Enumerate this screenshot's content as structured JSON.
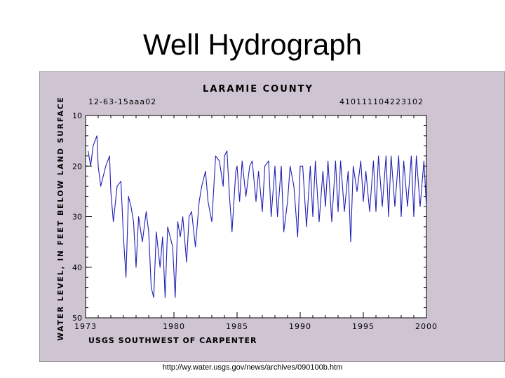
{
  "slide": {
    "title": "Well Hydrograph",
    "source_url": "http://wy.water.usgs.gov/news/archives/090100b.htm"
  },
  "colors": {
    "frame_background": "#cfc4d1",
    "plot_background": "#ffffff",
    "series_line": "#1f1fb4",
    "text": "#000000"
  },
  "chart_data": {
    "type": "line",
    "title": "LARAMIE COUNTY",
    "subtitle_left": "12-63-15aaa02",
    "subtitle_right": "410111104223102",
    "ylabel": "WATER LEVEL, IN FEET BELOW LAND SURFACE",
    "xlabel": "USGS SOUTHWEST OF CARPENTER",
    "xlim": [
      1973,
      2000
    ],
    "ylim": [
      50,
      10
    ],
    "y_inverted": true,
    "grid": false,
    "x_ticks": [
      1973,
      1980,
      1985,
      1990,
      1995,
      2000
    ],
    "y_ticks": [
      10,
      20,
      30,
      40,
      50
    ],
    "series": [
      {
        "x": [
          1973.2,
          1973.4,
          1973.6,
          1973.9,
          1974.0,
          1974.2,
          1974.4,
          1974.6,
          1974.9,
          1975.0,
          1975.2,
          1975.5,
          1975.8,
          1976.0,
          1976.2,
          1976.4,
          1976.6,
          1976.8,
          1977.0,
          1977.2,
          1977.5,
          1977.8,
          1978.0,
          1978.2,
          1978.4,
          1978.6,
          1978.9,
          1979.1,
          1979.3,
          1979.5,
          1979.7,
          1979.9,
          1980.1,
          1980.3,
          1980.5,
          1980.7,
          1981.0,
          1981.2,
          1981.4,
          1981.7,
          1982.0,
          1982.2,
          1982.5,
          1982.7,
          1983.0,
          1983.3,
          1983.6,
          1983.9,
          1984.0,
          1984.2,
          1984.4,
          1984.6,
          1984.9,
          1985.0,
          1985.2,
          1985.4,
          1985.7,
          1986.0,
          1986.2,
          1986.5,
          1986.7,
          1987.0,
          1987.2,
          1987.5,
          1987.7,
          1988.0,
          1988.2,
          1988.5,
          1988.7,
          1989.0,
          1989.2,
          1989.5,
          1989.8,
          1990.0,
          1990.2,
          1990.5,
          1990.8,
          1991.0,
          1991.2,
          1991.5,
          1991.8,
          1992.0,
          1992.2,
          1992.5,
          1992.8,
          1993.0,
          1993.2,
          1993.5,
          1993.8,
          1994.0,
          1994.2,
          1994.5,
          1994.8,
          1995.0,
          1995.2,
          1995.5,
          1995.8,
          1996.0,
          1996.2,
          1996.5,
          1996.8,
          1997.0,
          1997.2,
          1997.5,
          1997.8,
          1998.0,
          1998.2,
          1998.5,
          1998.8,
          1999.0,
          1999.2,
          1999.5,
          1999.8,
          2000.0
        ],
        "values": [
          17,
          20,
          16,
          14,
          20,
          24,
          22,
          20,
          18,
          25,
          31,
          24,
          23,
          34,
          42,
          26,
          28,
          31,
          40,
          30,
          35,
          29,
          33,
          44,
          46,
          33,
          40,
          34,
          46,
          32,
          34,
          36,
          46,
          31,
          34,
          30,
          39,
          30,
          29,
          36,
          27,
          24,
          21,
          27,
          31,
          18,
          19,
          24,
          18,
          17,
          26,
          33,
          21,
          20,
          27,
          19,
          26,
          20,
          19,
          27,
          21,
          29,
          20,
          19,
          30,
          20,
          30,
          20,
          33,
          27,
          20,
          24,
          34,
          20,
          20,
          32,
          20,
          30,
          19,
          31,
          21,
          28,
          19,
          31,
          19,
          29,
          19,
          29,
          21,
          35,
          20,
          25,
          19,
          27,
          21,
          29,
          19,
          29,
          18,
          28,
          18,
          30,
          18,
          28,
          18,
          30,
          19,
          28,
          18,
          30,
          18,
          28,
          19,
          28
        ]
      }
    ]
  }
}
